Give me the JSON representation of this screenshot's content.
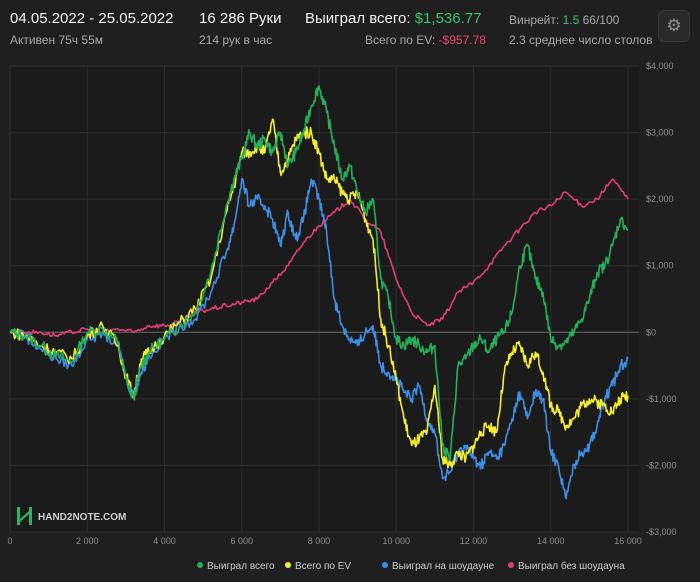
{
  "header": {
    "date_range": "04.05.2022 - 25.05.2022",
    "active": "Активен 75ч 55м",
    "hands": "16 286 Руки",
    "hands_rate": "214 рук в час",
    "won_total_label": "Выиграл всего:",
    "won_total_value": "$1,536.77",
    "ev_label": "Всего по EV:",
    "ev_value": "-$957.78",
    "winrate_label": "Винрейт:",
    "winrate_value": "1.5",
    "winrate_unit": "66/100",
    "tables_avg": "2.3 среднее число столов",
    "settings_icon": "gear-icon"
  },
  "brand": {
    "name": "HAND2NOTE.COM",
    "logo_icon": "hand2note-logo-icon"
  },
  "colors": {
    "background": "#1f1f1f",
    "grid": "#2e2e2e",
    "zero_line": "#6a6a6a",
    "won_total": "#22b05a",
    "ev": "#f4ee2e",
    "showdown": "#3d8fe6",
    "non_showdown": "#e23d7a"
  },
  "chart_data": {
    "type": "line",
    "x_ticks": [
      0,
      2000,
      4000,
      6000,
      8000,
      10000,
      12000,
      14000,
      16000
    ],
    "x_tick_labels": [
      "0",
      "2 000",
      "4 000",
      "6 000",
      "8 000",
      "10 000",
      "12 000",
      "14 000",
      "16 000"
    ],
    "xlim": [
      0,
      16286
    ],
    "y_ticks": [
      4000,
      3000,
      2000,
      1000,
      0,
      -1000,
      -2000,
      -3000
    ],
    "y_tick_labels": [
      "$4,000",
      "$3,000",
      "$2,000",
      "$1,000",
      "$0",
      "-$1,000",
      "-$2,000",
      "-$3,000"
    ],
    "ylim": [
      -3000,
      4000
    ],
    "grid": true,
    "legend_position": "bottom-right",
    "series": [
      {
        "name": "Выиграл всего",
        "color": "#22b05a",
        "points": [
          [
            0,
            0
          ],
          [
            400,
            -50
          ],
          [
            800,
            -200
          ],
          [
            1200,
            -350
          ],
          [
            1600,
            -450
          ],
          [
            2000,
            0
          ],
          [
            2400,
            50
          ],
          [
            2800,
            -150
          ],
          [
            3000,
            -700
          ],
          [
            3200,
            -1000
          ],
          [
            3400,
            -500
          ],
          [
            3600,
            -300
          ],
          [
            4000,
            -100
          ],
          [
            4400,
            100
          ],
          [
            4800,
            300
          ],
          [
            5200,
            900
          ],
          [
            5600,
            1900
          ],
          [
            5800,
            2300
          ],
          [
            6000,
            2600
          ],
          [
            6200,
            3000
          ],
          [
            6400,
            2800
          ],
          [
            6600,
            2900
          ],
          [
            6800,
            2700
          ],
          [
            7000,
            3000
          ],
          [
            7200,
            2500
          ],
          [
            7400,
            2700
          ],
          [
            7600,
            3000
          ],
          [
            7800,
            3400
          ],
          [
            8000,
            3700
          ],
          [
            8200,
            3300
          ],
          [
            8400,
            2800
          ],
          [
            8600,
            2300
          ],
          [
            8800,
            2500
          ],
          [
            9000,
            2100
          ],
          [
            9200,
            1800
          ],
          [
            9400,
            2000
          ],
          [
            9600,
            800
          ],
          [
            9800,
            500
          ],
          [
            10000,
            -100
          ],
          [
            10200,
            -200
          ],
          [
            10400,
            -100
          ],
          [
            10600,
            -200
          ],
          [
            10800,
            -300
          ],
          [
            11000,
            -200
          ],
          [
            11200,
            -1700
          ],
          [
            11400,
            -1900
          ],
          [
            11600,
            -500
          ],
          [
            11800,
            -400
          ],
          [
            12000,
            -200
          ],
          [
            12200,
            -100
          ],
          [
            12400,
            -300
          ],
          [
            12600,
            -100
          ],
          [
            12800,
            0
          ],
          [
            13000,
            300
          ],
          [
            13200,
            1000
          ],
          [
            13400,
            1300
          ],
          [
            13600,
            800
          ],
          [
            13800,
            600
          ],
          [
            14000,
            -100
          ],
          [
            14200,
            -200
          ],
          [
            14400,
            -150
          ],
          [
            14600,
            0
          ],
          [
            14800,
            200
          ],
          [
            15000,
            500
          ],
          [
            15200,
            900
          ],
          [
            15400,
            1000
          ],
          [
            15600,
            1300
          ],
          [
            15800,
            1700
          ],
          [
            16000,
            1550
          ]
        ]
      },
      {
        "name": "Всего по EV",
        "color": "#f4ee2e",
        "points": [
          [
            0,
            0
          ],
          [
            400,
            -50
          ],
          [
            800,
            -200
          ],
          [
            1200,
            -300
          ],
          [
            1600,
            -400
          ],
          [
            2000,
            -50
          ],
          [
            2400,
            100
          ],
          [
            2800,
            -200
          ],
          [
            3000,
            -650
          ],
          [
            3200,
            -950
          ],
          [
            3400,
            -400
          ],
          [
            3600,
            -300
          ],
          [
            4000,
            -50
          ],
          [
            4400,
            150
          ],
          [
            4800,
            350
          ],
          [
            5200,
            800
          ],
          [
            5600,
            1800
          ],
          [
            5800,
            2200
          ],
          [
            6000,
            2700
          ],
          [
            6200,
            2700
          ],
          [
            6400,
            2800
          ],
          [
            6600,
            2700
          ],
          [
            6800,
            3200
          ],
          [
            7000,
            2400
          ],
          [
            7200,
            2600
          ],
          [
            7400,
            2900
          ],
          [
            7600,
            3000
          ],
          [
            7800,
            3000
          ],
          [
            8000,
            2700
          ],
          [
            8200,
            2300
          ],
          [
            8400,
            2300
          ],
          [
            8600,
            2100
          ],
          [
            8800,
            2000
          ],
          [
            9000,
            2100
          ],
          [
            9200,
            1700
          ],
          [
            9400,
            1400
          ],
          [
            9600,
            200
          ],
          [
            9800,
            -200
          ],
          [
            10000,
            -700
          ],
          [
            10200,
            -1300
          ],
          [
            10400,
            -1700
          ],
          [
            10600,
            -1600
          ],
          [
            10800,
            -1500
          ],
          [
            11000,
            -800
          ],
          [
            11200,
            -1900
          ],
          [
            11400,
            -2000
          ],
          [
            11600,
            -1800
          ],
          [
            11800,
            -1900
          ],
          [
            12000,
            -1700
          ],
          [
            12200,
            -1500
          ],
          [
            12400,
            -1400
          ],
          [
            12600,
            -1500
          ],
          [
            12800,
            -600
          ],
          [
            13000,
            -300
          ],
          [
            13200,
            -200
          ],
          [
            13400,
            -500
          ],
          [
            13600,
            -300
          ],
          [
            13800,
            -600
          ],
          [
            14000,
            -1100
          ],
          [
            14200,
            -1200
          ],
          [
            14400,
            -1400
          ],
          [
            14600,
            -1300
          ],
          [
            14800,
            -1100
          ],
          [
            15000,
            -1000
          ],
          [
            15200,
            -1050
          ],
          [
            15400,
            -1100
          ],
          [
            15600,
            -1200
          ],
          [
            15800,
            -1000
          ],
          [
            16000,
            -950
          ]
        ]
      },
      {
        "name": "Выиграл на шоудауне",
        "color": "#3d8fe6",
        "points": [
          [
            0,
            0
          ],
          [
            400,
            -50
          ],
          [
            800,
            -250
          ],
          [
            1200,
            -400
          ],
          [
            1600,
            -500
          ],
          [
            2000,
            -100
          ],
          [
            2400,
            0
          ],
          [
            2800,
            -200
          ],
          [
            3000,
            -700
          ],
          [
            3200,
            -950
          ],
          [
            3400,
            -600
          ],
          [
            3600,
            -350
          ],
          [
            4000,
            -100
          ],
          [
            4400,
            100
          ],
          [
            4800,
            200
          ],
          [
            5200,
            600
          ],
          [
            5600,
            1200
          ],
          [
            5800,
            1600
          ],
          [
            6000,
            2300
          ],
          [
            6200,
            1900
          ],
          [
            6400,
            2000
          ],
          [
            6600,
            1900
          ],
          [
            6800,
            1700
          ],
          [
            7000,
            1300
          ],
          [
            7200,
            1800
          ],
          [
            7400,
            1400
          ],
          [
            7600,
            1700
          ],
          [
            7800,
            2300
          ],
          [
            8000,
            2000
          ],
          [
            8200,
            1500
          ],
          [
            8400,
            500
          ],
          [
            8600,
            100
          ],
          [
            8800,
            -100
          ],
          [
            9000,
            -200
          ],
          [
            9200,
            0
          ],
          [
            9400,
            100
          ],
          [
            9600,
            -500
          ],
          [
            9800,
            -600
          ],
          [
            10000,
            -700
          ],
          [
            10200,
            -900
          ],
          [
            10400,
            -1000
          ],
          [
            10600,
            -800
          ],
          [
            10800,
            -1300
          ],
          [
            11000,
            -1500
          ],
          [
            11200,
            -2200
          ],
          [
            11400,
            -2100
          ],
          [
            11600,
            -1800
          ],
          [
            11800,
            -1700
          ],
          [
            12000,
            -1900
          ],
          [
            12200,
            -2000
          ],
          [
            12400,
            -1800
          ],
          [
            12600,
            -1900
          ],
          [
            12800,
            -1700
          ],
          [
            13000,
            -1300
          ],
          [
            13200,
            -900
          ],
          [
            13400,
            -1300
          ],
          [
            13600,
            -900
          ],
          [
            13800,
            -1000
          ],
          [
            14000,
            -1800
          ],
          [
            14200,
            -2000
          ],
          [
            14400,
            -2500
          ],
          [
            14600,
            -2000
          ],
          [
            14800,
            -1800
          ],
          [
            15000,
            -1700
          ],
          [
            15200,
            -1400
          ],
          [
            15400,
            -1000
          ],
          [
            15600,
            -800
          ],
          [
            15800,
            -500
          ],
          [
            16000,
            -400
          ]
        ]
      },
      {
        "name": "Выиграл без шоудауна",
        "color": "#e23d7a",
        "points": [
          [
            0,
            0
          ],
          [
            400,
            0
          ],
          [
            800,
            0
          ],
          [
            1200,
            -50
          ],
          [
            1600,
            0
          ],
          [
            2000,
            50
          ],
          [
            2400,
            0
          ],
          [
            2800,
            50
          ],
          [
            3200,
            0
          ],
          [
            3600,
            100
          ],
          [
            4000,
            100
          ],
          [
            4400,
            150
          ],
          [
            4800,
            300
          ],
          [
            5200,
            350
          ],
          [
            5600,
            400
          ],
          [
            6000,
            450
          ],
          [
            6400,
            500
          ],
          [
            6800,
            750
          ],
          [
            7200,
            1000
          ],
          [
            7600,
            1350
          ],
          [
            8000,
            1600
          ],
          [
            8400,
            1800
          ],
          [
            8800,
            2000
          ],
          [
            9200,
            1700
          ],
          [
            9600,
            1500
          ],
          [
            10000,
            800
          ],
          [
            10400,
            300
          ],
          [
            10800,
            100
          ],
          [
            11200,
            200
          ],
          [
            11600,
            600
          ],
          [
            12000,
            750
          ],
          [
            12400,
            1000
          ],
          [
            12800,
            1300
          ],
          [
            13200,
            1550
          ],
          [
            13600,
            1800
          ],
          [
            14000,
            1900
          ],
          [
            14400,
            2100
          ],
          [
            14800,
            1900
          ],
          [
            15200,
            2000
          ],
          [
            15600,
            2300
          ],
          [
            16000,
            2000
          ]
        ]
      }
    ]
  }
}
